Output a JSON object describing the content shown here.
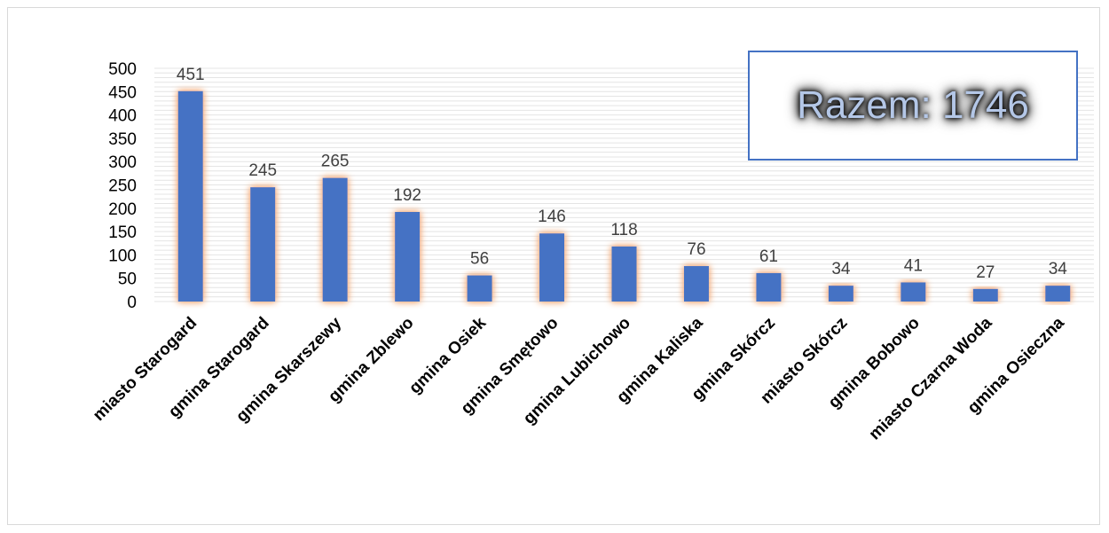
{
  "chart_data": {
    "type": "bar",
    "categories": [
      "miasto Starogard",
      "gmina Starogard",
      "gmina Skarszewy",
      "gmina Zblewo",
      "gmina Osiek",
      "gmina Smętowo",
      "gmina Lubichowo",
      "gmina Kaliska",
      "gmina Skórcz",
      "miasto Skórcz",
      "gmina Bobowo",
      "miasto Czarna Woda",
      "gmina Osieczna"
    ],
    "values": [
      451,
      245,
      265,
      192,
      56,
      146,
      118,
      76,
      61,
      34,
      41,
      27,
      34
    ],
    "title": "",
    "xlabel": "",
    "ylabel": "",
    "ylim": [
      0,
      500
    ],
    "y_ticks": [
      "0",
      "50",
      "100",
      "150",
      "200",
      "250",
      "300",
      "350",
      "400",
      "450",
      "500"
    ],
    "grid": true,
    "data_labels": true,
    "bar_color": "#4472c4",
    "bar_glow_color": "#f4b183"
  },
  "annotation": {
    "text": "Razem: 1746",
    "border_color": "#4472c4",
    "text_color": "#b4c7e7"
  }
}
